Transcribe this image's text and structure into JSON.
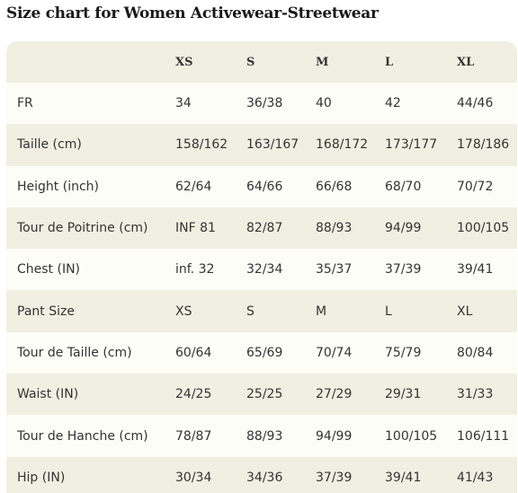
{
  "title": "Size chart for Women Activewear-Streetwear",
  "table": {
    "headers": [
      "",
      "XS",
      "S",
      "M",
      "L",
      "XL"
    ],
    "rows": [
      {
        "label": "FR",
        "values": [
          "34",
          "36/38",
          "40",
          "42",
          "44/46"
        ]
      },
      {
        "label": "Taille (cm)",
        "values": [
          "158/162",
          "163/167",
          "168/172",
          "173/177",
          "178/186"
        ]
      },
      {
        "label": "Height (inch)",
        "values": [
          "62/64",
          "64/66",
          "66/68",
          "68/70",
          "70/72"
        ]
      },
      {
        "label": "Tour de Poitrine (cm)",
        "values": [
          "INF 81",
          "82/87",
          "88/93",
          "94/99",
          "100/105"
        ]
      },
      {
        "label": "Chest (IN)",
        "values": [
          "inf. 32",
          "32/34",
          "35/37",
          "37/39",
          "39/41"
        ]
      },
      {
        "label": "Pant Size",
        "values": [
          "XS",
          "S",
          "M",
          "L",
          "XL"
        ]
      },
      {
        "label": "Tour de Taille (cm)",
        "values": [
          "60/64",
          "65/69",
          "70/74",
          "75/79",
          "80/84"
        ]
      },
      {
        "label": "Waist (IN)",
        "values": [
          "24/25",
          "25/25",
          "27/29",
          "29/31",
          "31/33"
        ]
      },
      {
        "label": "Tour de Hanche (cm)",
        "values": [
          "78/87",
          "88/93",
          "94/99",
          "100/105",
          "106/111"
        ]
      },
      {
        "label": "Hip (IN)",
        "values": [
          "30/34",
          "34/36",
          "37/39",
          "39/41",
          "41/43"
        ]
      }
    ]
  }
}
